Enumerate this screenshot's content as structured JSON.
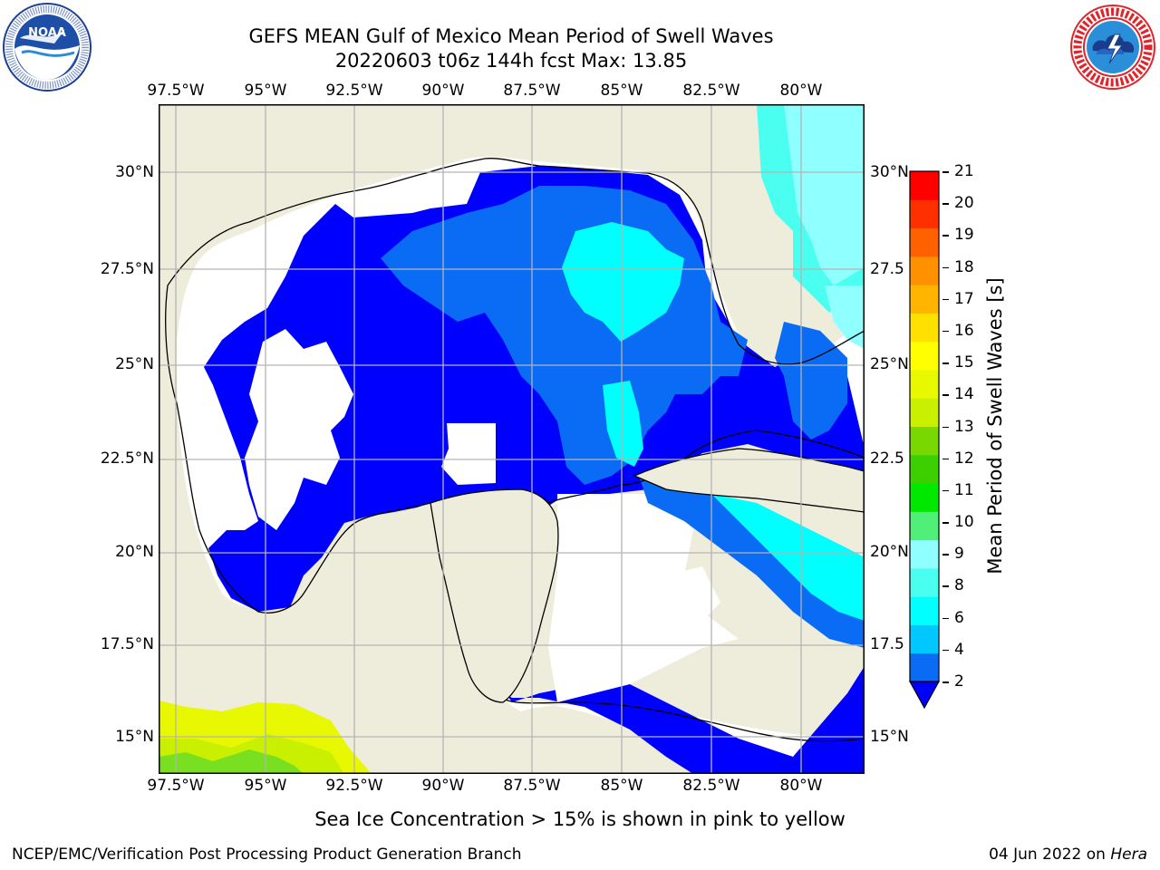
{
  "header": {
    "title_line1": "GEFS MEAN Gulf of Mexico Mean Period of Swell Waves",
    "title_line2": "20220603 t06z 144h fcst   Max: 13.85"
  },
  "logos": {
    "left": {
      "name": "noaa-logo",
      "text": "NOAA",
      "ring_text": "NATIONAL OCEANIC AND ATMOSPHERIC ADMINISTRATION · U.S. DEPARTMENT OF COMMERCE"
    },
    "right": {
      "name": "nws-logo",
      "ring_text": "NATIONAL WEATHER SERVICE"
    }
  },
  "map": {
    "lon_labels": [
      "97.5°W",
      "95°W",
      "92.5°W",
      "90°W",
      "87.5°W",
      "85°W",
      "82.5°W",
      "80°W"
    ],
    "lat_labels_left": [
      "30°N",
      "27.5°N",
      "25°N",
      "22.5°N",
      "20°N",
      "17.5°N",
      "15°N"
    ],
    "lat_labels_right": [
      "30°N",
      "27.5",
      "25°N",
      "22.5",
      "20°N",
      "17.5",
      "15°N"
    ],
    "colors": {
      "land": "#eeecdb",
      "ocean_missing": "#ffffff",
      "grid": "#b4b4b4",
      "coast": "#000000"
    }
  },
  "colorbar": {
    "label": "Mean Period of Swell Waves [s]",
    "ticks": [
      "21",
      "20",
      "19",
      "18",
      "17",
      "16",
      "15",
      "14",
      "13",
      "12",
      "11",
      "10",
      "9",
      "8",
      "6",
      "4",
      "2"
    ],
    "colors_bottom_to_top": [
      "#0a6cf5",
      "#00c8ff",
      "#00ffff",
      "#4bfff0",
      "#8fffff",
      "#50f078",
      "#00e800",
      "#3cd000",
      "#78d800",
      "#c8f000",
      "#e8f800",
      "#ffff00",
      "#ffe000",
      "#ffb400",
      "#ff9000",
      "#ff6000",
      "#ff3000",
      "#ff0000"
    ],
    "extend_color": "#0000ff"
  },
  "footer": {
    "note": "Sea Ice Concentration > 15% is shown in pink to yellow",
    "credit": "NCEP/EMC/Verification Post Processing Product Generation Branch",
    "date": "04 Jun 2022 on",
    "host": "Hera"
  }
}
